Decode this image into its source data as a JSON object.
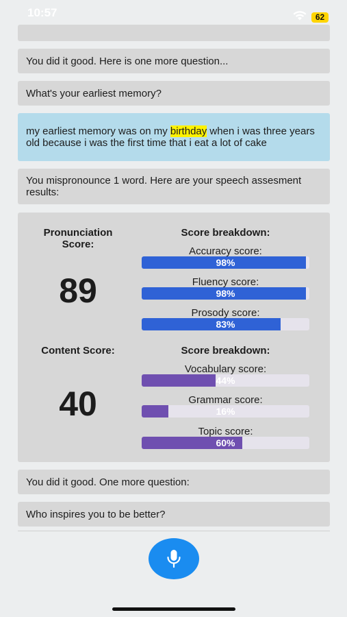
{
  "status_bar": {
    "time": "10:57",
    "battery": "62"
  },
  "messages": [
    {
      "role": "bot",
      "text": "You did it good. Here is one more question..."
    },
    {
      "role": "bot",
      "text": "What's your earliest memory?"
    },
    {
      "role": "user",
      "text_before": "my earliest memory was on my ",
      "highlight": "birthday",
      "text_after": " when i was three years old because i was the first time that i eat a lot of cake"
    },
    {
      "role": "bot",
      "text": "You mispronounce 1 word. Here are your speech assesment results:"
    },
    {
      "role": "bot",
      "text": "You did it good. One more question:"
    },
    {
      "role": "bot",
      "text": "Who inspires you to be better?"
    }
  ],
  "assessment": {
    "pronunciation": {
      "title": "Pronunciation Score:",
      "score": "89",
      "breakdown_title": "Score breakdown:",
      "metrics": [
        {
          "label": "Accuracy score:",
          "value": 98,
          "display": "98%"
        },
        {
          "label": "Fluency score:",
          "value": 98,
          "display": "98%"
        },
        {
          "label": "Prosody score:",
          "value": 83,
          "display": "83%"
        }
      ]
    },
    "content": {
      "title": "Content Score:",
      "score": "40",
      "breakdown_title": "Score breakdown:",
      "metrics": [
        {
          "label": "Vocabulary score:",
          "value": 44,
          "display": "44%"
        },
        {
          "label": "Grammar score:",
          "value": 16,
          "display": "16%"
        },
        {
          "label": "Topic score:",
          "value": 60,
          "display": "60%"
        }
      ]
    }
  },
  "colors": {
    "pronunciation_bar": "#2f62d6",
    "content_bar": "#6f4fb0",
    "user_bubble": "#b4dbeb",
    "bot_bubble": "#d7d7d7",
    "mic_button": "#1a8cf0",
    "highlight": "#fff200"
  },
  "icons": {
    "record": "microphone-icon",
    "wifi": "wifi-icon"
  }
}
